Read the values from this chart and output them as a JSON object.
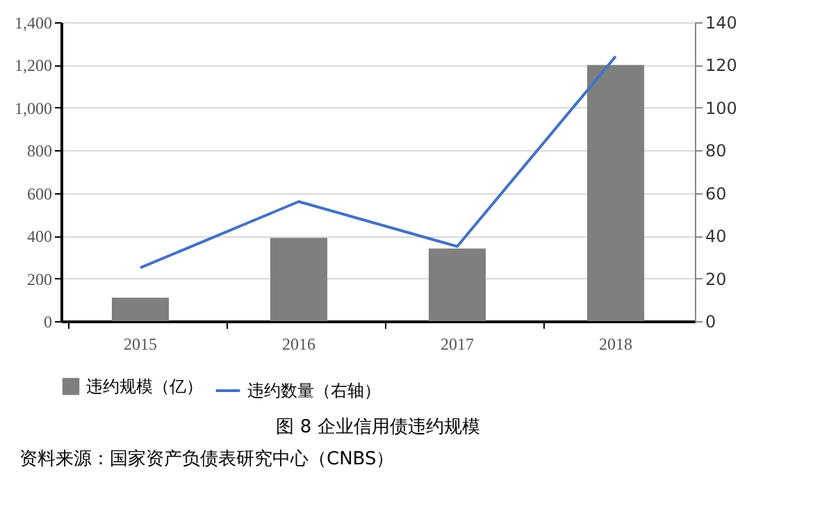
{
  "chart_data": {
    "type": "bar",
    "title": "图 8  企业信用债违约规模",
    "annotations": [
      "资料来源：国家资产负债表研究中心（CNBS）"
    ],
    "categories": [
      "2015",
      "2016",
      "2017",
      "2018"
    ],
    "series": [
      {
        "name": "违约规模（亿）",
        "color": "#7f7f7f",
        "values": [
          110,
          390,
          340,
          1200
        ]
      },
      {
        "name": "违约数量（右轴）",
        "type": "line",
        "axis": "y2",
        "color": "#4472c4",
        "values": [
          25,
          56,
          35,
          124
        ]
      }
    ],
    "ylim": [
      0,
      1400
    ],
    "yticks": [
      {
        "value": 0,
        "label": "0"
      },
      {
        "value": 200,
        "label": "200"
      },
      {
        "value": 400,
        "label": "400"
      },
      {
        "value": 600,
        "label": "600"
      },
      {
        "value": 800,
        "label": "800"
      },
      {
        "value": 1000,
        "label": "1,000"
      },
      {
        "value": 1200,
        "label": "1,200"
      },
      {
        "value": 1400,
        "label": "1,400"
      }
    ],
    "y2lim": [
      0,
      140
    ],
    "y2ticks": [
      0,
      20,
      40,
      60,
      80,
      100,
      120,
      140
    ],
    "grid": "y",
    "legend": "bottom"
  }
}
